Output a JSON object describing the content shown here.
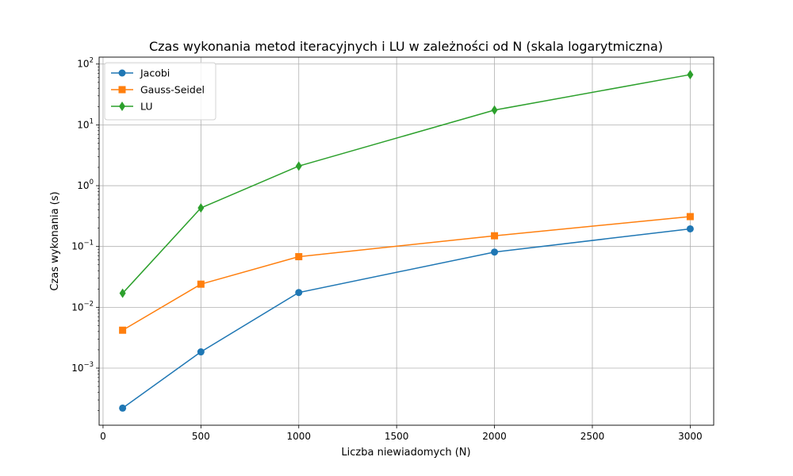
{
  "chart_data": {
    "type": "line",
    "title": "Czas wykonania metod iteracyjnych i LU w zależności od N (skala logarytmiczna)",
    "xlabel": "Liczba niewiadomych (N)",
    "ylabel": "Czas wykonania (s)",
    "x": [
      100,
      500,
      1000,
      2000,
      3000
    ],
    "xlim": [
      -20,
      3120
    ],
    "xticks": [
      0,
      500,
      1000,
      1500,
      2000,
      2500,
      3000
    ],
    "xtick_labels": [
      "0",
      "500",
      "1000",
      "1500",
      "2000",
      "2500",
      "3000"
    ],
    "yscale": "log",
    "ylim": [
      0.000115,
      130
    ],
    "yticks": [
      0.001,
      0.01,
      0.1,
      1,
      10,
      100
    ],
    "ytick_labels": [
      {
        "base": "10",
        "exp": "−3"
      },
      {
        "base": "10",
        "exp": "−2"
      },
      {
        "base": "10",
        "exp": "−1"
      },
      {
        "base": "10",
        "exp": "0"
      },
      {
        "base": "10",
        "exp": "1"
      },
      {
        "base": "10",
        "exp": "2"
      }
    ],
    "grid": true,
    "legend": "top-left",
    "series": [
      {
        "name": "Jacobi",
        "marker": "circle",
        "color": "#1f77b4",
        "values": [
          0.00022,
          0.00185,
          0.0175,
          0.081,
          0.195
        ]
      },
      {
        "name": "Gauss-Seidel",
        "marker": "square",
        "color": "#ff7f0e",
        "values": [
          0.0042,
          0.024,
          0.068,
          0.15,
          0.31
        ]
      },
      {
        "name": "LU",
        "marker": "diamond",
        "color": "#2ca02c",
        "values": [
          0.017,
          0.43,
          2.1,
          17.5,
          67
        ]
      }
    ]
  }
}
